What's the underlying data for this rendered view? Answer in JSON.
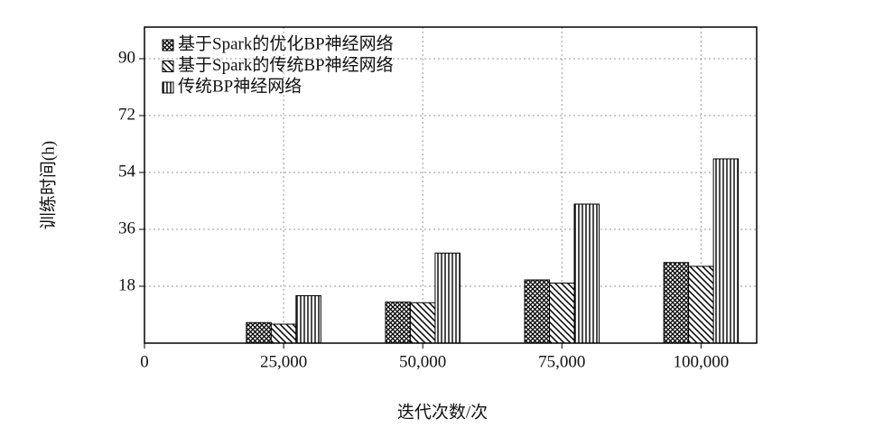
{
  "chart_data": {
    "type": "bar",
    "x_label": "迭代次数/次",
    "y_label": "训练时间(h)",
    "x": [
      25000,
      50000,
      75000,
      100000
    ],
    "series": [
      {
        "name": "基于Spark的优化BP神经网络",
        "color": "#000000",
        "hatch": "crosshatch",
        "values": [
          6.5,
          13,
          20,
          25.5
        ]
      },
      {
        "name": "基于Spark的传统BP神经网络",
        "color": "#000000",
        "hatch": "diagonal",
        "values": [
          6,
          12.8,
          19,
          24.3
        ]
      },
      {
        "name": "传统BP神经网络",
        "color": "#000000",
        "hatch": "vertical",
        "values": [
          15,
          28.5,
          44,
          58.3
        ]
      }
    ],
    "xlim": [
      0,
      110000
    ],
    "xticks": [
      0,
      {
        "value": 25000,
        "label": "25,000"
      },
      {
        "value": 50000,
        "label": "50,000"
      },
      {
        "value": 75000,
        "label": "75,000"
      },
      {
        "value": 100000,
        "label": "100,000"
      }
    ],
    "ylim": [
      0,
      100
    ],
    "yticks": [
      18,
      36,
      54,
      72,
      90
    ],
    "grid": true,
    "legend": "upper-left"
  }
}
